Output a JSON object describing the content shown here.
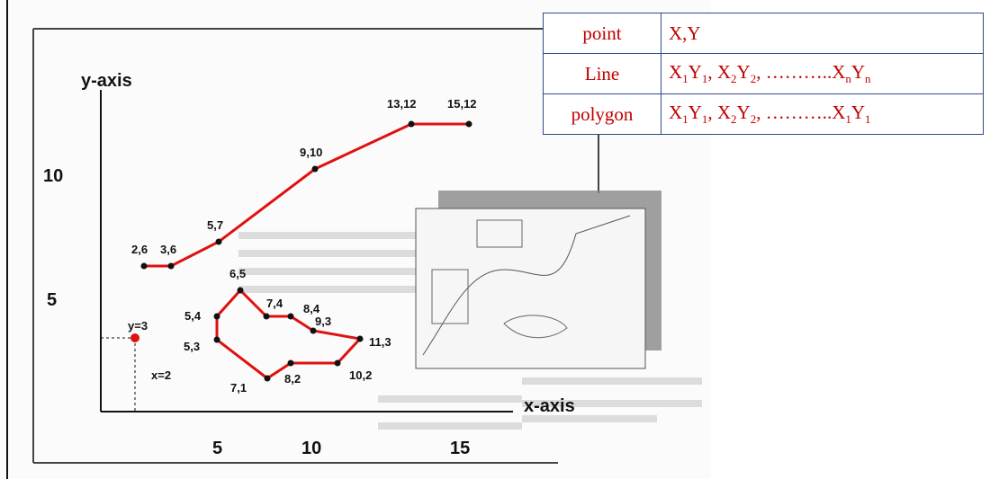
{
  "figure": {
    "y_axis_label": "y-axis",
    "x_axis_label": "x-axis",
    "y_ticks": [
      "10",
      "5"
    ],
    "x_ticks": [
      "5",
      "10",
      "15"
    ],
    "point": {
      "label": "y=3",
      "x_note": "x=2"
    },
    "line_points": [
      "2,6",
      "3,6",
      "5,7",
      "9,10",
      "13,12",
      "15,12"
    ],
    "polygon_points": [
      "6,5",
      "5,4",
      "5,3",
      "7,1",
      "8,2",
      "10,2",
      "11,3",
      "9,3",
      "8,4",
      "7,4"
    ]
  },
  "table": {
    "rows": [
      [
        "point",
        [
          "X,Y"
        ]
      ],
      [
        "Line",
        [
          "X",
          "1",
          "Y",
          "1",
          ", X",
          "2",
          "Y",
          "2",
          ", ………..X",
          "n",
          "Y",
          "n"
        ]
      ],
      [
        "polygon",
        [
          "X",
          "1",
          "Y",
          "1",
          ", X",
          "2",
          "Y",
          "2",
          ", ………..X",
          "1",
          "Y",
          "1"
        ]
      ]
    ]
  }
}
